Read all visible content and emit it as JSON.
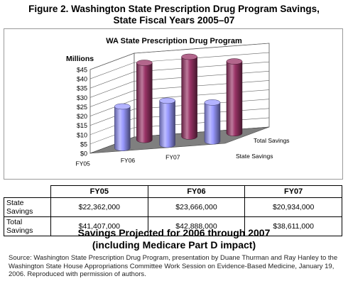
{
  "figure_title_line1": "Figure 2. Washington State Prescription Drug Program Savings,",
  "figure_title_line2": "State Fiscal Years 2005–07",
  "chart_data": {
    "type": "bar",
    "title": "WA State Prescription Drug Program",
    "ylabel": "Millions",
    "y_ticks": [
      "$0",
      "$5",
      "$10",
      "$15",
      "$20",
      "$25",
      "$30",
      "$35",
      "$40",
      "$45"
    ],
    "ylim": [
      0,
      45
    ],
    "categories": [
      "FY05",
      "FY06",
      "FY07"
    ],
    "series": [
      {
        "name": "State Savings",
        "values": [
          22.362,
          23.666,
          20.934
        ],
        "color": "#9999ff"
      },
      {
        "name": "Total Savings",
        "values": [
          41.407,
          42.888,
          38.611
        ],
        "color": "#993366"
      }
    ],
    "grid": true
  },
  "table": {
    "headers": [
      "FY05",
      "FY06",
      "FY07"
    ],
    "rows": [
      {
        "label": "State Savings",
        "values": [
          "$22,362,000",
          "$23,666,000",
          "$20,934,000"
        ]
      },
      {
        "label": "Total Savings",
        "values": [
          "$41,407,000",
          "$42,888,000",
          "$38,611,000"
        ]
      }
    ]
  },
  "subtitle_line1": "Savings Projected for 2006 through 2007",
  "subtitle_line2": "(including Medicare Part D impact)",
  "source_note": "Source: Washington State Prescription Drug Program, presentation by Duane Thurman and Ray Hanley to the Washington State House Appropriations Committee Work Session on Evidence-Based Medicine, January 19, 2006. Reproduced with permission of authors."
}
